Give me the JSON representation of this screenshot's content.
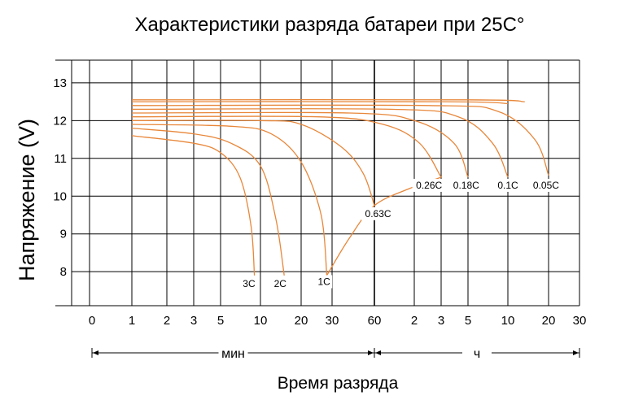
{
  "chart_data": {
    "type": "line",
    "title": "Характеристики разряда батареи при 25С°",
    "xlabel": "Время разряда",
    "ylabel": "Напряжение (V)",
    "x_scale": "log",
    "x_ticks": [
      {
        "label": "0",
        "minutes": 0.5
      },
      {
        "label": "1",
        "minutes": 1
      },
      {
        "label": "2",
        "minutes": 2
      },
      {
        "label": "3",
        "minutes": 3
      },
      {
        "label": "5",
        "minutes": 5
      },
      {
        "label": "10",
        "minutes": 10
      },
      {
        "label": "20",
        "minutes": 20
      },
      {
        "label": "30",
        "minutes": 30
      },
      {
        "label": "60",
        "minutes": 60
      },
      {
        "label": "2",
        "minutes": 120
      },
      {
        "label": "3",
        "minutes": 180
      },
      {
        "label": "5",
        "minutes": 300
      },
      {
        "label": "10",
        "minutes": 600
      },
      {
        "label": "20",
        "minutes": 1200
      },
      {
        "label": "30",
        "minutes": 1800
      }
    ],
    "x_unit_labels": [
      {
        "label": "мин",
        "from_minutes": 0.5,
        "to_minutes": 60
      },
      {
        "label": "ч",
        "from_minutes": 60,
        "to_minutes": 1800
      }
    ],
    "y_ticks": [
      8,
      9,
      10,
      11,
      12,
      13
    ],
    "ylim": [
      7.1,
      13.6
    ],
    "grid": true,
    "series_color": "#E8873A",
    "series": [
      {
        "name": "3C",
        "points": [
          [
            1,
            11.6
          ],
          [
            3,
            11.4
          ],
          [
            5,
            11.15
          ],
          [
            7,
            10.5
          ],
          [
            8.5,
            9.2
          ],
          [
            9,
            7.9
          ]
        ]
      },
      {
        "name": "2C",
        "points": [
          [
            1,
            11.8
          ],
          [
            3,
            11.65
          ],
          [
            6,
            11.4
          ],
          [
            10,
            10.8
          ],
          [
            13,
            9.4
          ],
          [
            15,
            7.9
          ]
        ]
      },
      {
        "name": "1C",
        "points": [
          [
            1,
            11.9
          ],
          [
            6,
            11.85
          ],
          [
            12,
            11.65
          ],
          [
            20,
            10.9
          ],
          [
            26,
            9.5
          ],
          [
            28,
            7.9
          ]
        ]
      },
      {
        "name": "0.63C",
        "points": [
          [
            1,
            12.0
          ],
          [
            10,
            12.0
          ],
          [
            20,
            11.9
          ],
          [
            35,
            11.3
          ],
          [
            50,
            10.6
          ],
          [
            60,
            9.75
          ]
        ]
      },
      {
        "name": "0.26C",
        "points": [
          [
            1,
            12.1
          ],
          [
            25,
            12.1
          ],
          [
            70,
            11.9
          ],
          [
            130,
            11.4
          ],
          [
            180,
            10.5
          ]
        ]
      },
      {
        "name": "0.18C",
        "points": [
          [
            1,
            12.2
          ],
          [
            40,
            12.2
          ],
          [
            120,
            12.0
          ],
          [
            230,
            11.4
          ],
          [
            300,
            10.5
          ]
        ]
      },
      {
        "name": "0.1C",
        "points": [
          [
            1,
            12.3
          ],
          [
            80,
            12.3
          ],
          [
            250,
            12.1
          ],
          [
            460,
            11.4
          ],
          [
            600,
            10.5
          ]
        ]
      },
      {
        "name": "0.05C",
        "points": [
          [
            1,
            12.4
          ],
          [
            150,
            12.4
          ],
          [
            500,
            12.25
          ],
          [
            950,
            11.5
          ],
          [
            1200,
            10.55
          ]
        ]
      },
      {
        "name": "",
        "points": [
          [
            1,
            12.5
          ],
          [
            200,
            12.5
          ],
          [
            600,
            12.45
          ]
        ]
      },
      {
        "name": "",
        "points": [
          [
            1,
            12.55
          ],
          [
            300,
            12.55
          ],
          [
            800,
            12.5
          ]
        ]
      }
    ],
    "recharge_curve": {
      "points": [
        [
          28,
          7.9
        ],
        [
          40,
          8.9
        ],
        [
          60,
          9.75
        ],
        [
          110,
          10.2
        ],
        [
          180,
          10.5
        ]
      ]
    },
    "labels": [
      {
        "text": "3C",
        "minutes": 8.2,
        "volts": 7.6
      },
      {
        "text": "2C",
        "minutes": 14,
        "volts": 7.6
      },
      {
        "text": "1C",
        "minutes": 27,
        "volts": 7.65
      },
      {
        "text": "0.63C",
        "minutes": 64,
        "volts": 9.45
      },
      {
        "text": "0.26C",
        "minutes": 150,
        "volts": 10.2
      },
      {
        "text": "0.18C",
        "minutes": 290,
        "volts": 10.2
      },
      {
        "text": "0.1C",
        "minutes": 600,
        "volts": 10.2
      },
      {
        "text": "0.05C",
        "minutes": 1150,
        "volts": 10.2
      }
    ]
  }
}
